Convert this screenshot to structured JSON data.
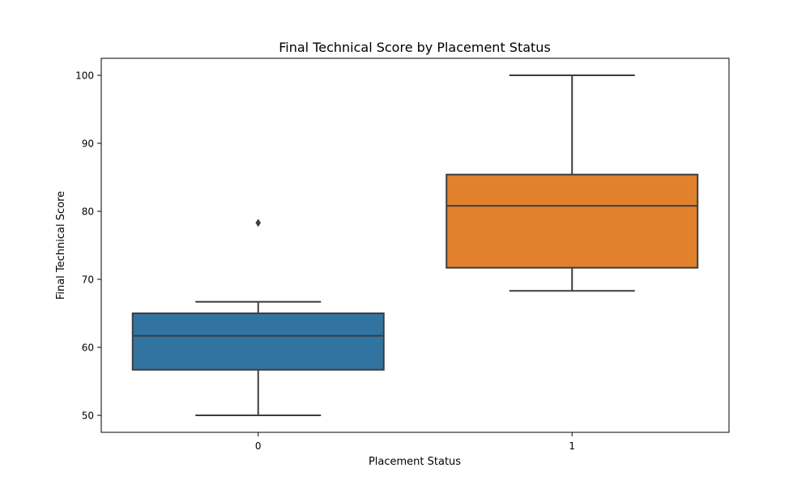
{
  "chart_data": {
    "type": "box",
    "title": "Final Technical Score by Placement Status",
    "xlabel": "Placement Status",
    "ylabel": "Final Technical Score",
    "categories": [
      "0",
      "1"
    ],
    "ylim": [
      47.5,
      102.5
    ],
    "yticks": [
      50,
      60,
      70,
      80,
      90,
      100
    ],
    "grid": false,
    "boxes": [
      {
        "category": "0",
        "whisker_low": 50.0,
        "q1": 56.7,
        "median": 61.7,
        "q3": 65.0,
        "whisker_high": 66.7,
        "outliers": [
          78.3
        ],
        "color": "#3274a1"
      },
      {
        "category": "1",
        "whisker_low": 68.3,
        "q1": 71.7,
        "median": 80.8,
        "q3": 85.4,
        "whisker_high": 100.0,
        "outliers": [],
        "color": "#e1812c"
      }
    ]
  }
}
